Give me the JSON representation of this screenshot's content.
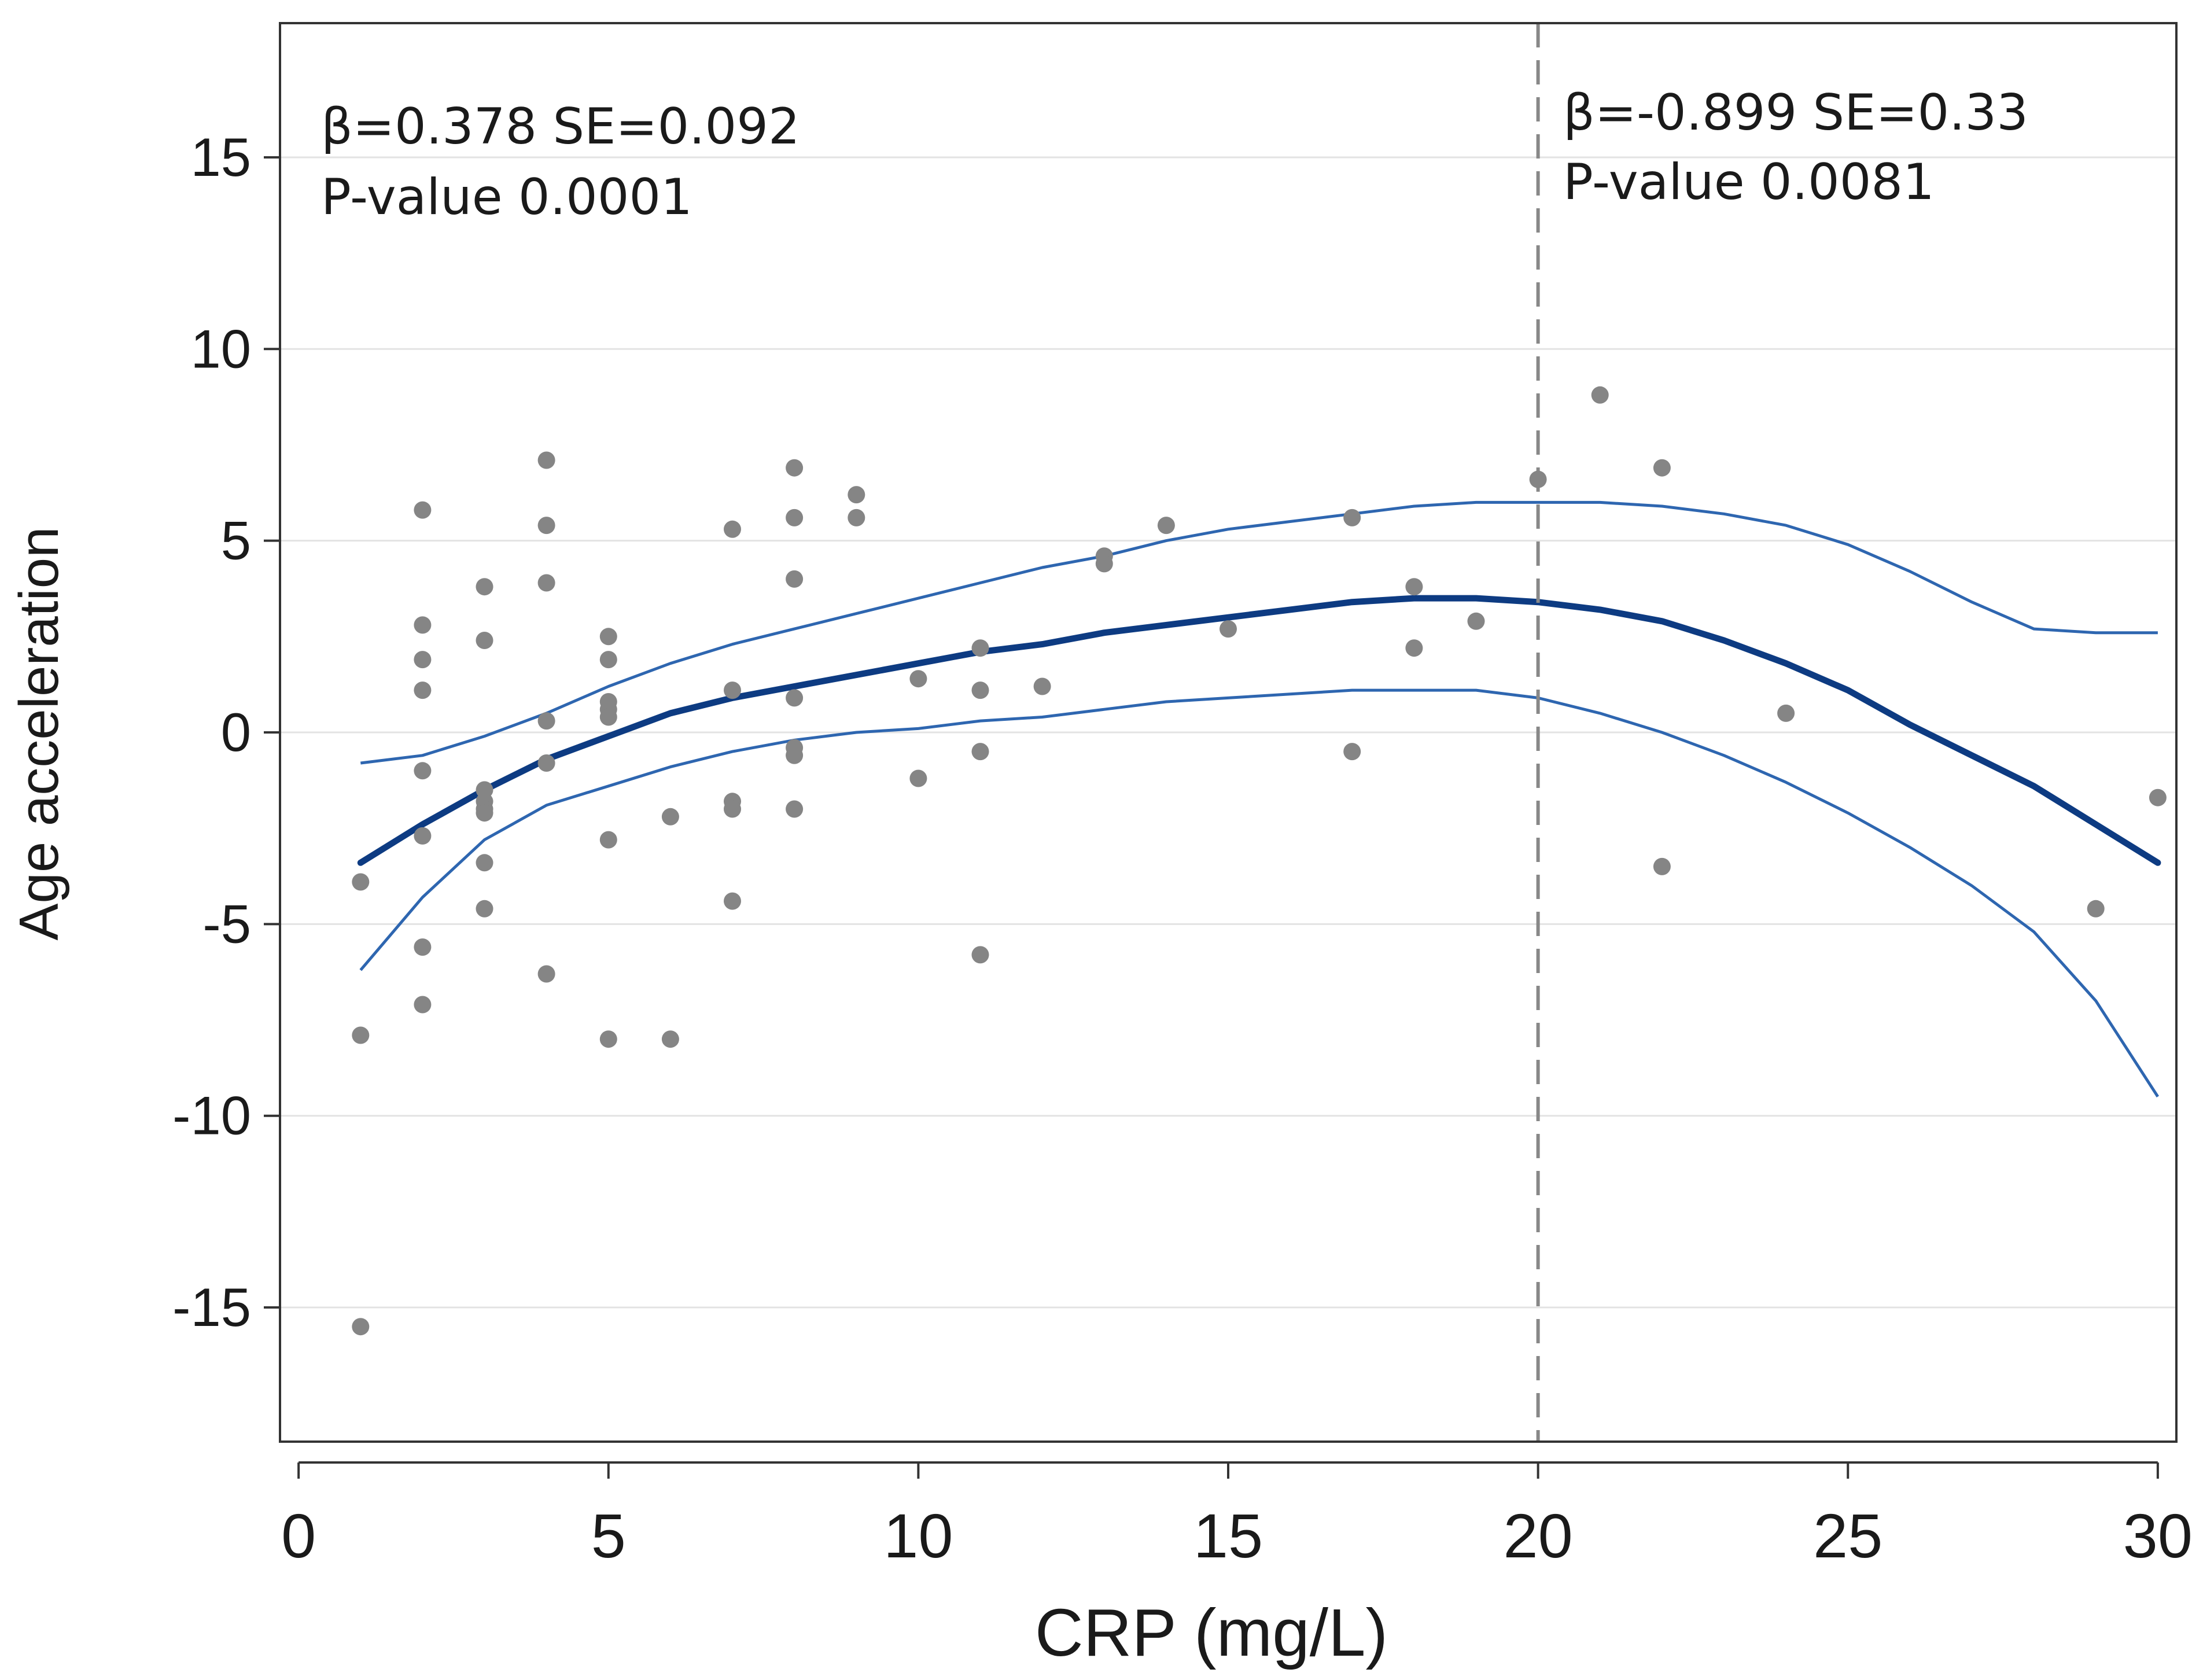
{
  "chart_data": {
    "type": "scatter",
    "title": "",
    "xlabel": "CRP (mg/L)",
    "ylabel": "Age acceleration",
    "xlim": [
      -0.3,
      30.3
    ],
    "ylim": [
      -18.5,
      18.5
    ],
    "xticks": [
      0,
      5,
      10,
      15,
      20,
      25,
      30
    ],
    "xtick_labels": [
      "0",
      "5",
      "10",
      "15",
      "20",
      "25",
      "30"
    ],
    "yticks": [
      15,
      10,
      5,
      0,
      -5,
      -10,
      -15
    ],
    "ytick_labels": [
      "15",
      "10",
      "5",
      "0",
      "-5",
      "-10",
      "-15"
    ],
    "grid": "horizontal",
    "threshold_x": 20,
    "annotations": [
      {
        "line1": "β=0.378  SE=0.092",
        "line2": "P-value 0.0001",
        "position": "top-left"
      },
      {
        "line1": "β=-0.899  SE=0.33",
        "line2": "P-value 0.0081",
        "position": "top-right of threshold"
      }
    ],
    "colors": {
      "points": "#858585",
      "fit": "#0d3b82",
      "ci": "#2e66b0",
      "threshold": "#888888",
      "grid": "#e3e3e3",
      "axis": "#333333"
    },
    "points": [
      [
        1,
        -3.9
      ],
      [
        1,
        -7.9
      ],
      [
        1,
        -15.5
      ],
      [
        2,
        5.8
      ],
      [
        2,
        2.8
      ],
      [
        2,
        1.9
      ],
      [
        2,
        1.1
      ],
      [
        2,
        -1.0
      ],
      [
        2,
        -2.7
      ],
      [
        2,
        -5.6
      ],
      [
        2,
        -7.1
      ],
      [
        3,
        3.8
      ],
      [
        3,
        2.4
      ],
      [
        3,
        -1.5
      ],
      [
        3,
        -1.8
      ],
      [
        3,
        -2.0
      ],
      [
        3,
        -2.1
      ],
      [
        3,
        -3.4
      ],
      [
        3,
        -4.6
      ],
      [
        4,
        7.1
      ],
      [
        4,
        5.4
      ],
      [
        4,
        3.9
      ],
      [
        4,
        0.3
      ],
      [
        4,
        -0.8
      ],
      [
        4,
        -6.3
      ],
      [
        5,
        2.5
      ],
      [
        5,
        1.9
      ],
      [
        5,
        0.8
      ],
      [
        5,
        0.6
      ],
      [
        5,
        0.4
      ],
      [
        5,
        -2.8
      ],
      [
        5,
        -8.0
      ],
      [
        6,
        -2.2
      ],
      [
        6,
        -8.0
      ],
      [
        7,
        5.3
      ],
      [
        7,
        1.1
      ],
      [
        7,
        -1.8
      ],
      [
        7,
        -2.0
      ],
      [
        7,
        -4.4
      ],
      [
        8,
        6.9
      ],
      [
        8,
        5.6
      ],
      [
        8,
        4.0
      ],
      [
        8,
        0.9
      ],
      [
        8,
        -0.4
      ],
      [
        8,
        -0.6
      ],
      [
        8,
        -2.0
      ],
      [
        9,
        6.2
      ],
      [
        9,
        5.6
      ],
      [
        10,
        1.4
      ],
      [
        10,
        -1.2
      ],
      [
        11,
        2.2
      ],
      [
        11,
        1.1
      ],
      [
        11,
        -0.5
      ],
      [
        11,
        -5.8
      ],
      [
        12,
        1.2
      ],
      [
        13,
        4.6
      ],
      [
        13,
        4.4
      ],
      [
        14,
        5.4
      ],
      [
        15,
        2.7
      ],
      [
        17,
        5.6
      ],
      [
        17,
        -0.5
      ],
      [
        18,
        3.8
      ],
      [
        18,
        2.2
      ],
      [
        19,
        2.9
      ],
      [
        20,
        6.6
      ],
      [
        21,
        8.8
      ],
      [
        22,
        6.9
      ],
      [
        22,
        -3.5
      ],
      [
        24,
        0.5
      ],
      [
        29,
        -4.6
      ],
      [
        30,
        -1.7
      ]
    ],
    "fit": {
      "x": [
        1,
        2,
        3,
        4,
        5,
        6,
        7,
        8,
        9,
        10,
        11,
        12,
        13,
        14,
        15,
        16,
        17,
        18,
        19,
        20,
        21,
        22,
        23,
        24,
        25,
        26,
        27,
        28,
        29,
        30
      ],
      "y": [
        -3.4,
        -2.4,
        -1.5,
        -0.7,
        -0.1,
        0.5,
        0.9,
        1.2,
        1.5,
        1.8,
        2.1,
        2.3,
        2.6,
        2.8,
        3.0,
        3.2,
        3.4,
        3.5,
        3.5,
        3.4,
        3.2,
        2.9,
        2.4,
        1.8,
        1.1,
        0.2,
        -0.6,
        -1.4,
        -2.4,
        -3.4
      ],
      "upper": [
        -0.8,
        -0.6,
        -0.1,
        0.5,
        1.2,
        1.8,
        2.3,
        2.7,
        3.1,
        3.5,
        3.9,
        4.3,
        4.6,
        5.0,
        5.3,
        5.5,
        5.7,
        5.9,
        6.0,
        6.0,
        6.0,
        5.9,
        5.7,
        5.4,
        4.9,
        4.2,
        3.4,
        2.7,
        2.6,
        2.6
      ],
      "lower": [
        -6.2,
        -4.3,
        -2.8,
        -1.9,
        -1.4,
        -0.9,
        -0.5,
        -0.2,
        0.0,
        0.1,
        0.3,
        0.4,
        0.6,
        0.8,
        0.9,
        1.0,
        1.1,
        1.1,
        1.1,
        0.9,
        0.5,
        0.0,
        -0.6,
        -1.3,
        -2.1,
        -3.0,
        -4.0,
        -5.2,
        -7.0,
        -9.5
      ]
    }
  }
}
